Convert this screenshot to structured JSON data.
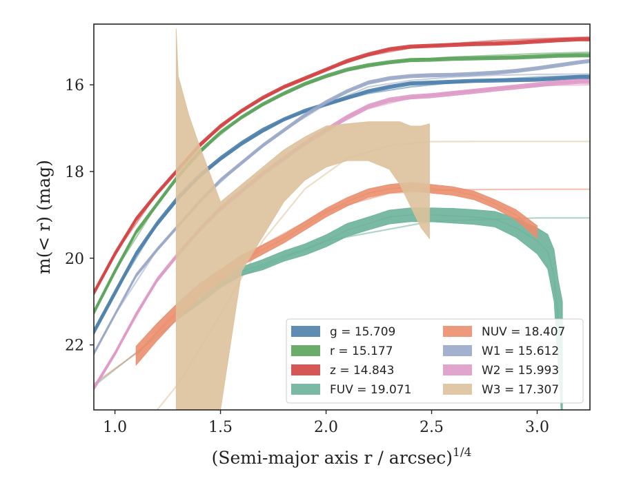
{
  "chart_data": {
    "type": "area",
    "xlabel": "(Semi-major axis r / arcsec)",
    "xlabel_superscript": "1/4",
    "ylabel": "m(< r) (mag)",
    "xlim": [
      0.9,
      3.25
    ],
    "ylim": [
      23.5,
      14.6
    ],
    "y_inverted": true,
    "x_ticks": [
      1.0,
      1.5,
      2.0,
      2.5,
      3.0
    ],
    "x_tick_labels": [
      "1.0",
      "1.5",
      "2.0",
      "2.5",
      "3.0"
    ],
    "y_ticks": [
      16,
      18,
      20,
      22
    ],
    "y_tick_labels": [
      "16",
      "18",
      "20",
      "22"
    ],
    "grid": false,
    "legend_placement": "lower-right",
    "series": [
      {
        "name": "g = 15.709",
        "band": "g",
        "total": "15.709",
        "color": "#4C7FAB",
        "x": [
          0.9,
          1.0,
          1.1,
          1.2,
          1.3,
          1.4,
          1.5,
          1.6,
          1.7,
          1.8,
          1.9,
          2.0,
          2.1,
          2.2,
          2.3,
          2.4,
          2.5,
          2.6,
          2.7,
          2.8,
          2.9,
          3.0,
          3.1,
          3.2,
          3.25
        ],
        "y": [
          21.7,
          20.8,
          19.9,
          19.2,
          18.6,
          18.1,
          17.7,
          17.35,
          17.05,
          16.8,
          16.6,
          16.45,
          16.3,
          16.15,
          16.05,
          15.97,
          15.95,
          15.93,
          15.91,
          15.9,
          15.89,
          15.88,
          15.85,
          15.82,
          15.82
        ],
        "y_err": [
          0.07,
          0.07,
          0.06,
          0.06,
          0.06,
          0.05,
          0.05,
          0.05,
          0.05,
          0.04,
          0.04,
          0.04,
          0.04,
          0.04,
          0.04,
          0.04,
          0.04,
          0.04,
          0.04,
          0.04,
          0.04,
          0.04,
          0.04,
          0.04,
          0.04
        ],
        "model_x": [
          0.9,
          1.0,
          1.2,
          1.4,
          1.6,
          1.8,
          2.0,
          2.2,
          2.4,
          2.6,
          2.8,
          3.0,
          3.25
        ],
        "model_y": [
          21.7,
          20.8,
          19.2,
          18.1,
          17.35,
          16.8,
          16.45,
          16.2,
          16.05,
          15.95,
          15.88,
          15.82,
          15.78
        ]
      },
      {
        "name": "r = 15.177",
        "band": "r",
        "total": "15.177",
        "color": "#5BA35B",
        "x": [
          0.9,
          1.0,
          1.1,
          1.2,
          1.3,
          1.4,
          1.5,
          1.6,
          1.7,
          1.8,
          1.9,
          2.0,
          2.1,
          2.2,
          2.3,
          2.4,
          2.5,
          2.6,
          2.7,
          2.8,
          2.9,
          3.0,
          3.1,
          3.2,
          3.25
        ],
        "y": [
          21.25,
          20.3,
          19.4,
          18.75,
          18.1,
          17.55,
          17.1,
          16.75,
          16.45,
          16.2,
          15.98,
          15.8,
          15.65,
          15.55,
          15.48,
          15.43,
          15.42,
          15.4,
          15.39,
          15.38,
          15.37,
          15.35,
          15.33,
          15.32,
          15.32
        ],
        "y_err": [
          0.06,
          0.06,
          0.05,
          0.05,
          0.05,
          0.05,
          0.04,
          0.04,
          0.04,
          0.04,
          0.04,
          0.04,
          0.04,
          0.04,
          0.04,
          0.04,
          0.04,
          0.04,
          0.04,
          0.04,
          0.04,
          0.04,
          0.04,
          0.04,
          0.04
        ],
        "model_x": [
          0.9,
          1.0,
          1.2,
          1.4,
          1.6,
          1.8,
          2.0,
          2.2,
          2.4,
          2.6,
          2.8,
          3.0,
          3.25
        ],
        "model_y": [
          21.25,
          20.3,
          18.75,
          17.55,
          16.75,
          16.2,
          15.8,
          15.55,
          15.42,
          15.36,
          15.32,
          15.28,
          15.25
        ]
      },
      {
        "name": "z = 14.843",
        "band": "z",
        "total": "14.843",
        "color": "#D24242",
        "x": [
          0.9,
          1.0,
          1.1,
          1.2,
          1.3,
          1.4,
          1.5,
          1.6,
          1.7,
          1.8,
          1.9,
          2.0,
          2.1,
          2.2,
          2.3,
          2.4,
          2.5,
          2.6,
          2.7,
          2.8,
          2.9,
          3.0,
          3.1,
          3.2,
          3.25
        ],
        "y": [
          20.8,
          19.9,
          19.1,
          18.5,
          17.95,
          17.4,
          16.95,
          16.6,
          16.3,
          16.05,
          15.85,
          15.65,
          15.45,
          15.3,
          15.18,
          15.12,
          15.1,
          15.08,
          15.06,
          15.05,
          15.03,
          15.0,
          14.97,
          14.95,
          14.95
        ],
        "y_err": [
          0.06,
          0.06,
          0.05,
          0.05,
          0.05,
          0.05,
          0.04,
          0.04,
          0.04,
          0.04,
          0.04,
          0.04,
          0.04,
          0.04,
          0.04,
          0.04,
          0.04,
          0.04,
          0.04,
          0.04,
          0.04,
          0.04,
          0.04,
          0.04,
          0.04
        ],
        "model_x": [
          0.9,
          1.0,
          1.2,
          1.4,
          1.6,
          1.8,
          2.0,
          2.2,
          2.4,
          2.6,
          2.8,
          3.0,
          3.25
        ],
        "model_y": [
          20.8,
          19.9,
          18.5,
          17.4,
          16.6,
          16.05,
          15.65,
          15.33,
          15.15,
          15.05,
          14.98,
          14.94,
          14.9
        ]
      },
      {
        "name": "FUV = 19.071",
        "band": "FUV",
        "total": "19.071",
        "color": "#6BB39B",
        "x": [
          1.3,
          1.4,
          1.5,
          1.6,
          1.7,
          1.8,
          1.9,
          2.0,
          2.1,
          2.2,
          2.3,
          2.4,
          2.5,
          2.6,
          2.7,
          2.8,
          2.9,
          3.0,
          3.05,
          3.08,
          3.1,
          3.12
        ],
        "y": [
          21.35,
          21.0,
          20.6,
          20.3,
          20.15,
          19.95,
          19.8,
          19.6,
          19.35,
          19.2,
          19.05,
          19.0,
          19.0,
          19.02,
          19.05,
          19.1,
          19.3,
          19.6,
          19.85,
          20.4,
          21.5,
          22.5
        ],
        "y_err": [
          0.05,
          0.06,
          0.08,
          0.1,
          0.12,
          0.12,
          0.13,
          0.14,
          0.15,
          0.15,
          0.16,
          0.16,
          0.16,
          0.17,
          0.17,
          0.18,
          0.22,
          0.3,
          0.4,
          0.6,
          1.0,
          1.5
        ],
        "model_x": [
          0.9,
          1.2,
          1.5,
          2.0,
          2.5,
          3.0,
          3.25
        ],
        "model_y": [
          22.95,
          21.8,
          20.6,
          19.6,
          19.15,
          19.07,
          19.07
        ]
      },
      {
        "name": "NUV = 18.407",
        "band": "NUV",
        "total": "18.407",
        "color": "#EA8E6E",
        "x": [
          1.1,
          1.2,
          1.3,
          1.4,
          1.5,
          1.6,
          1.7,
          1.8,
          1.9,
          2.0,
          2.1,
          2.2,
          2.3,
          2.4,
          2.5,
          2.6,
          2.7,
          2.8,
          2.9,
          3.0
        ],
        "y": [
          22.25,
          21.7,
          21.2,
          20.75,
          20.4,
          20.05,
          19.8,
          19.55,
          19.25,
          18.95,
          18.7,
          18.5,
          18.4,
          18.35,
          18.4,
          18.45,
          18.55,
          18.75,
          19.0,
          19.4
        ],
        "y_err": [
          0.22,
          0.2,
          0.18,
          0.16,
          0.14,
          0.12,
          0.11,
          0.1,
          0.1,
          0.1,
          0.1,
          0.1,
          0.1,
          0.1,
          0.1,
          0.1,
          0.1,
          0.1,
          0.12,
          0.15
        ],
        "model_x": [
          0.9,
          1.1,
          1.4,
          1.7,
          2.0,
          2.3,
          2.6,
          3.0,
          3.25
        ],
        "model_y": [
          22.9,
          22.2,
          20.8,
          19.7,
          18.9,
          18.5,
          18.42,
          18.41,
          18.41
        ]
      },
      {
        "name": "W1 = 15.612",
        "band": "W1",
        "total": "15.612",
        "color": "#9AA9C9",
        "x": [
          0.9,
          1.0,
          1.1,
          1.2,
          1.3,
          1.4,
          1.5,
          1.6,
          1.7,
          1.8,
          1.9,
          2.0,
          2.1,
          2.2,
          2.3,
          2.4,
          2.5,
          2.6,
          2.7,
          2.8,
          2.9,
          3.0,
          3.1,
          3.2,
          3.25
        ],
        "y": [
          22.2,
          21.3,
          20.4,
          19.8,
          19.25,
          18.7,
          18.2,
          17.8,
          17.4,
          17.05,
          16.7,
          16.4,
          16.15,
          15.95,
          15.85,
          15.8,
          15.78,
          15.77,
          15.75,
          15.72,
          15.68,
          15.62,
          15.55,
          15.48,
          15.45
        ],
        "y_err": [
          0.04,
          0.04,
          0.04,
          0.04,
          0.04,
          0.04,
          0.04,
          0.04,
          0.04,
          0.04,
          0.04,
          0.04,
          0.04,
          0.04,
          0.04,
          0.04,
          0.04,
          0.04,
          0.04,
          0.04,
          0.04,
          0.04,
          0.04,
          0.04,
          0.04
        ],
        "model_x": [
          0.9,
          1.0,
          1.2,
          1.4,
          1.6,
          1.8,
          2.0,
          2.2,
          2.4,
          2.6,
          2.8,
          3.0,
          3.25
        ],
        "model_y": [
          22.2,
          21.3,
          19.8,
          18.7,
          17.8,
          17.05,
          16.45,
          16.05,
          15.9,
          15.82,
          15.78,
          15.76,
          15.75
        ]
      },
      {
        "name": "W2 = 15.993",
        "band": "W2",
        "total": "15.993",
        "color": "#DE9AC7",
        "x": [
          0.9,
          1.0,
          1.1,
          1.2,
          1.3,
          1.4,
          1.5,
          1.6,
          1.7,
          1.8,
          1.9,
          2.0,
          2.1,
          2.2,
          2.3,
          2.4,
          2.5,
          2.6,
          2.7,
          2.8,
          2.9,
          3.0,
          3.1,
          3.2,
          3.25
        ],
        "y": [
          23.0,
          22.2,
          21.3,
          20.5,
          19.9,
          19.35,
          18.85,
          18.45,
          18.05,
          17.7,
          17.35,
          17.05,
          16.75,
          16.5,
          16.35,
          16.28,
          16.25,
          16.2,
          16.15,
          16.1,
          16.05,
          16.0,
          15.95,
          15.92,
          15.92
        ],
        "y_err": [
          0.05,
          0.05,
          0.05,
          0.05,
          0.05,
          0.05,
          0.05,
          0.05,
          0.05,
          0.05,
          0.05,
          0.05,
          0.05,
          0.05,
          0.05,
          0.05,
          0.05,
          0.05,
          0.05,
          0.05,
          0.05,
          0.05,
          0.05,
          0.05,
          0.05
        ],
        "model_x": [
          0.9,
          1.0,
          1.2,
          1.4,
          1.6,
          1.8,
          2.0,
          2.2,
          2.4,
          2.6,
          2.8,
          3.0,
          3.25
        ],
        "model_y": [
          23.0,
          22.2,
          20.5,
          19.35,
          18.45,
          17.7,
          17.05,
          16.55,
          16.3,
          16.18,
          16.08,
          16.02,
          16.0
        ]
      },
      {
        "name": "W3 = 17.307",
        "band": "W3",
        "total": "17.307",
        "color": "#DDC19B",
        "x": [
          1.29,
          1.3,
          1.35,
          1.4,
          1.5,
          1.6,
          1.7,
          1.8,
          1.9,
          2.0,
          2.1,
          2.2,
          2.3,
          2.35,
          2.4,
          2.45,
          2.49
        ],
        "y_lower": [
          14.7,
          15.8,
          16.7,
          17.4,
          18.7,
          18.3,
          17.9,
          17.5,
          17.2,
          16.95,
          16.9,
          16.85,
          16.85,
          16.85,
          16.95,
          16.95,
          16.9
        ],
        "y_upper": [
          23.5,
          23.5,
          23.5,
          23.5,
          23.5,
          20.3,
          19.5,
          18.7,
          18.2,
          17.9,
          17.75,
          17.75,
          17.95,
          18.3,
          18.8,
          19.3,
          19.55
        ],
        "model_x": [
          1.2,
          1.3,
          1.5,
          1.7,
          1.9,
          2.1,
          2.3,
          2.5,
          2.7,
          3.25
        ],
        "model_y": [
          23.5,
          22.9,
          21.3,
          19.6,
          18.4,
          17.7,
          17.4,
          17.31,
          17.307,
          17.307
        ]
      }
    ]
  }
}
